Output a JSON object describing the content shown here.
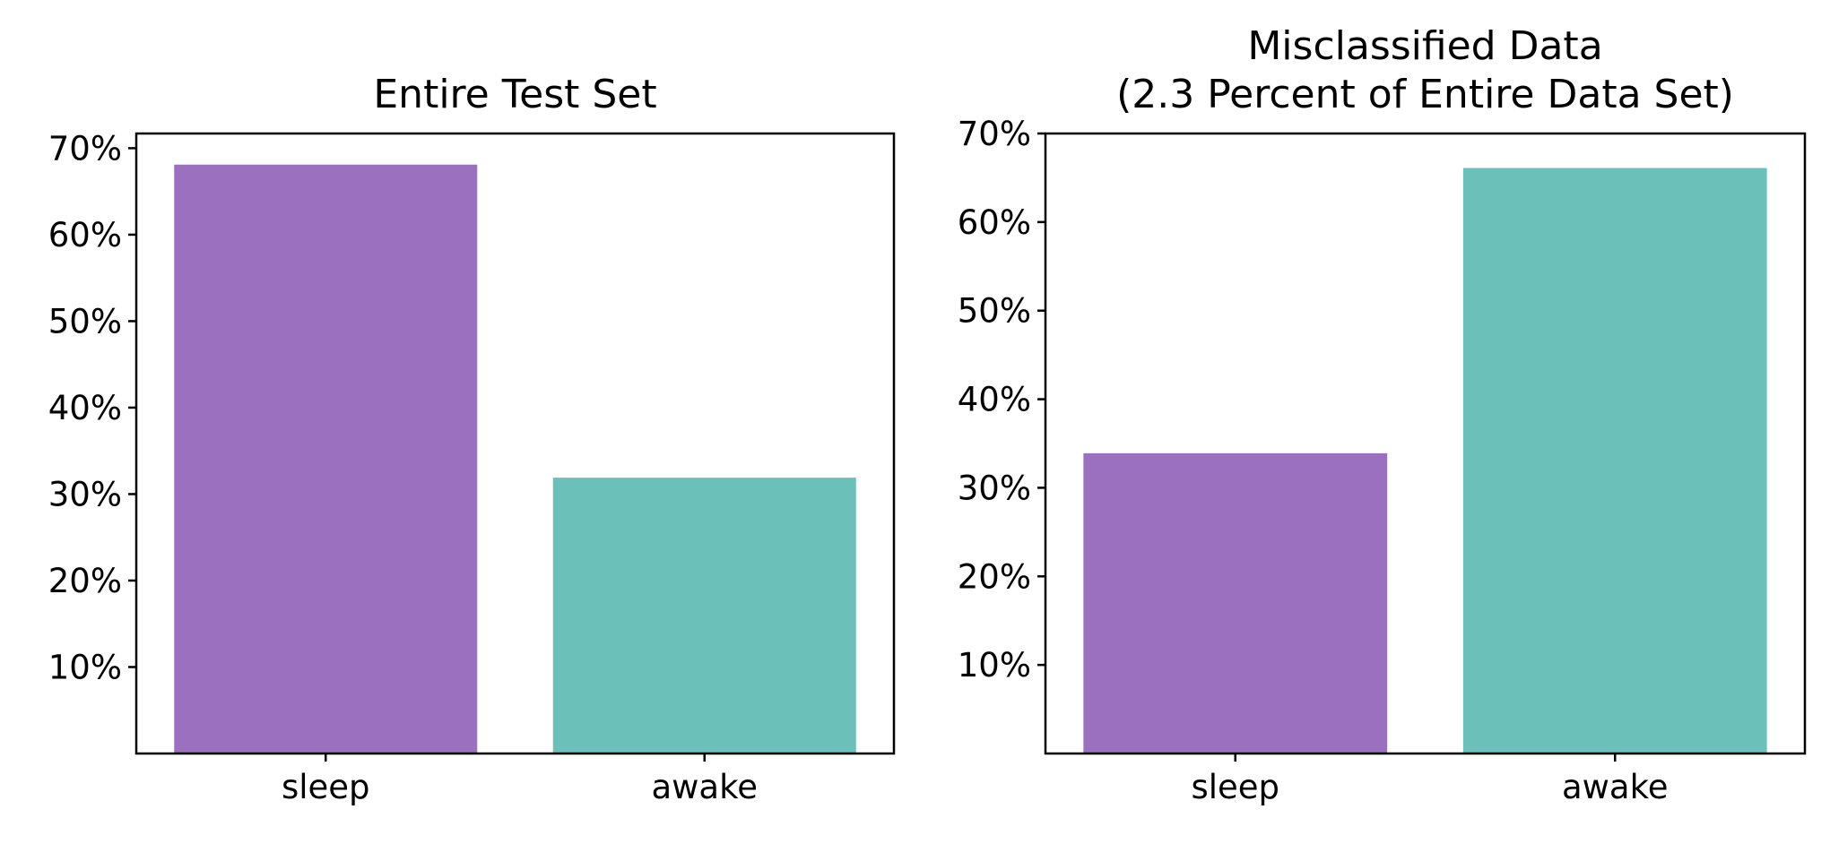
{
  "chart_data": [
    {
      "type": "bar",
      "title": "Entire Test Set",
      "categories": [
        "sleep",
        "awake"
      ],
      "values": [
        68.1,
        31.9
      ],
      "colors": [
        "#9b70bf",
        "#6bc1b9"
      ],
      "ylim": [
        0,
        71.7
      ],
      "yticks": [
        10,
        20,
        30,
        40,
        50,
        60,
        70
      ],
      "ytick_labels": [
        "10%",
        "20%",
        "30%",
        "40%",
        "50%",
        "60%",
        "70%"
      ],
      "xlabel": "",
      "ylabel": "",
      "grid": false
    },
    {
      "type": "bar",
      "title": "Misclassified Data\n(2.3 Percent of Entire Data Set)",
      "title_lines": [
        "Misclassified Data",
        "(2.3 Percent of Entire Data Set)"
      ],
      "categories": [
        "sleep",
        "awake"
      ],
      "values": [
        33.9,
        66.1
      ],
      "colors": [
        "#9b70bf",
        "#6bc1b9"
      ],
      "ylim": [
        0,
        70
      ],
      "yticks": [
        10,
        20,
        30,
        40,
        50,
        60,
        70
      ],
      "ytick_labels": [
        "10%",
        "20%",
        "30%",
        "40%",
        "50%",
        "60%",
        "70%"
      ],
      "xlabel": "",
      "ylabel": "",
      "grid": false
    }
  ]
}
